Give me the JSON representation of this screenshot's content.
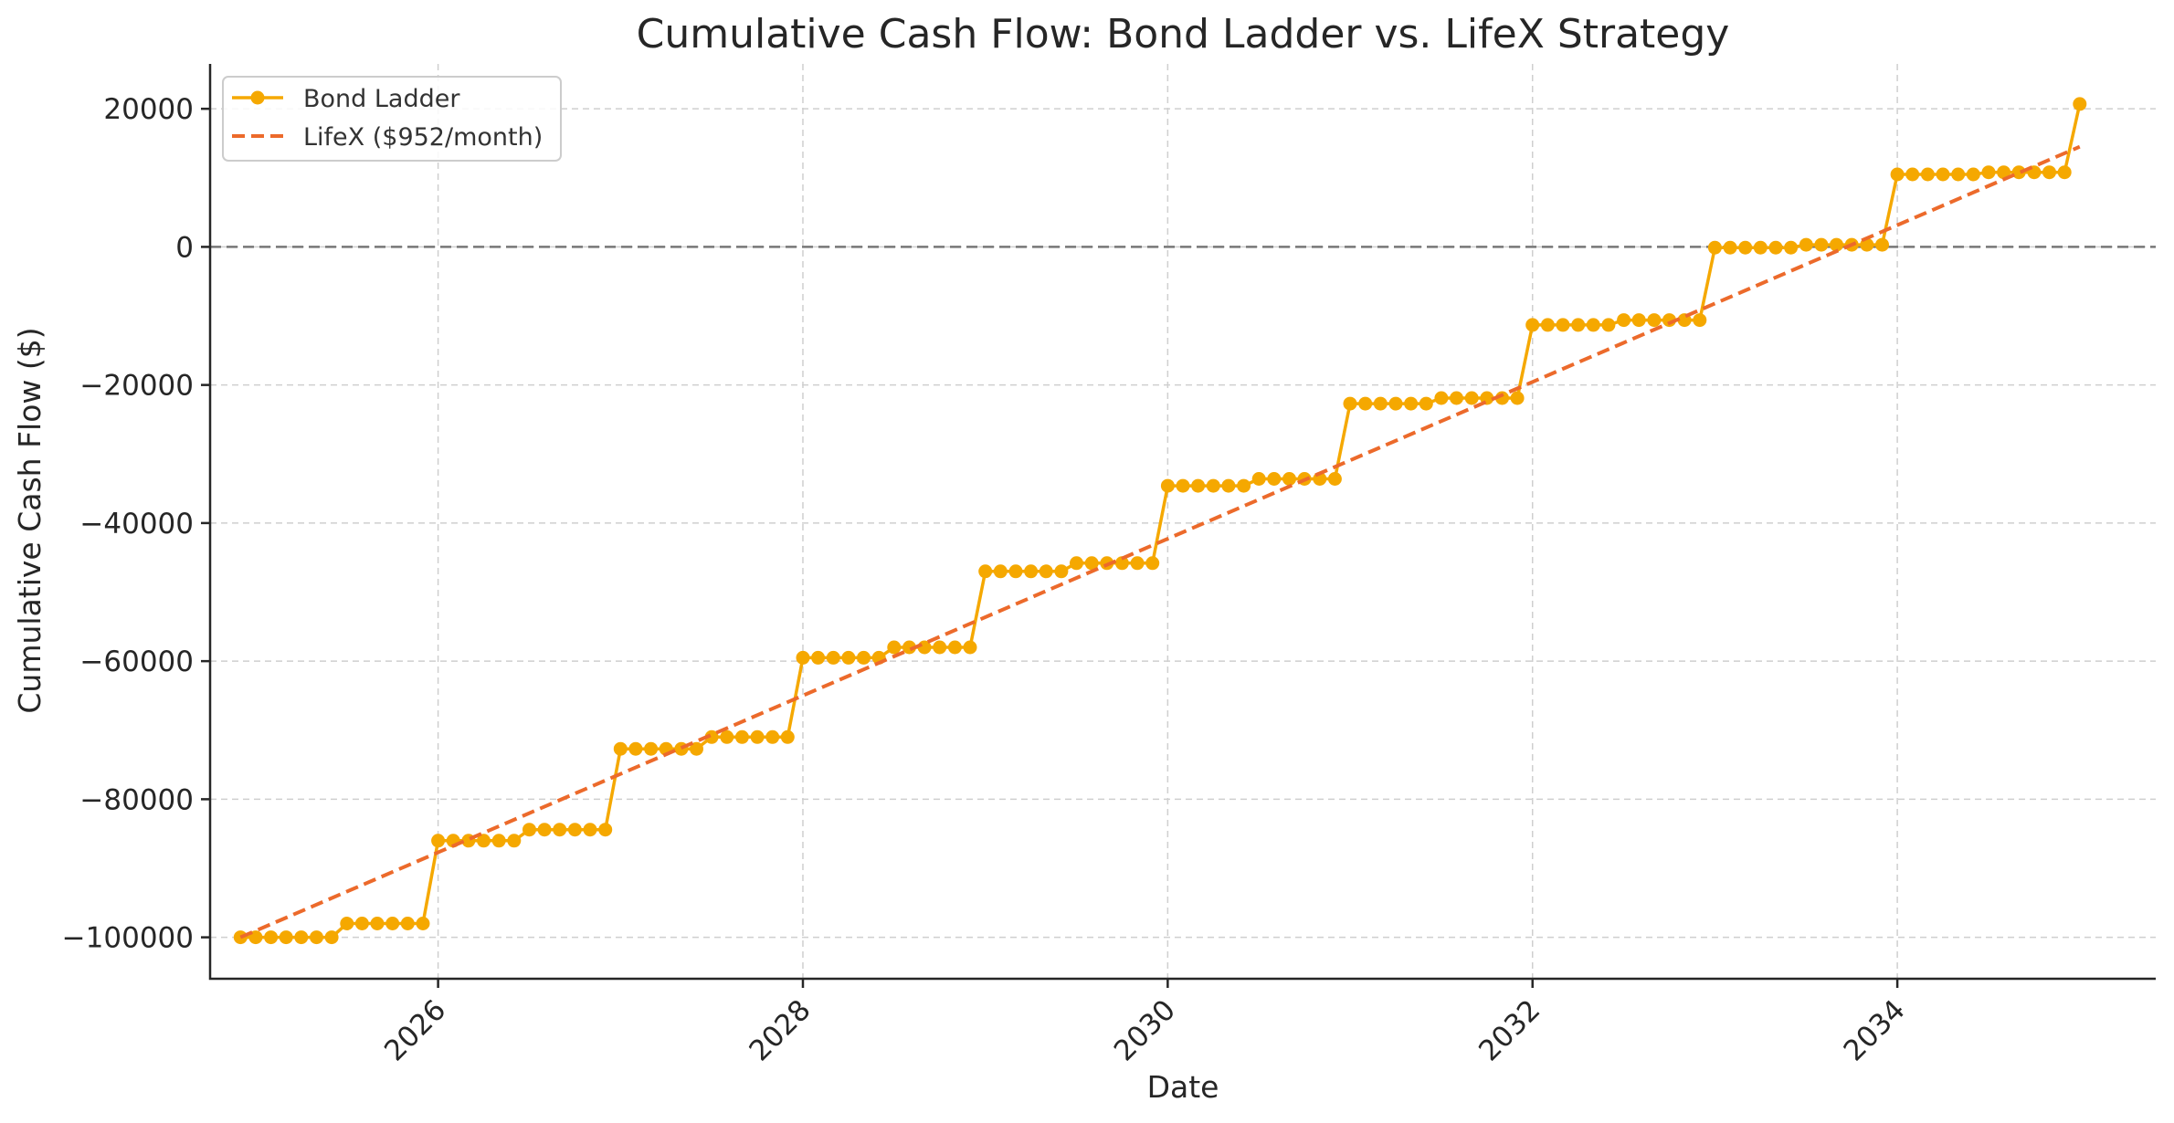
{
  "chart_data": {
    "type": "line",
    "title": "Cumulative Cash Flow: Bond Ladder vs. LifeX Strategy",
    "xlabel": "Date",
    "ylabel": "Cumulative Cash Flow ($)",
    "x_ticks": [
      "2026",
      "2028",
      "2030",
      "2032",
      "2034"
    ],
    "y_ticks": [
      20000,
      0,
      -20000,
      -40000,
      -60000,
      -80000,
      -100000
    ],
    "y_tick_labels": [
      "20000",
      "0",
      "−20000",
      "−40000",
      "−60000",
      "−80000",
      "−100000"
    ],
    "xlim": [
      "2024-10-01",
      "2035-06-01"
    ],
    "ylim": [
      -106000,
      26500
    ],
    "grid": true,
    "reference_line_y": 0,
    "legend_position": "upper-left",
    "colors": {
      "bond": "#f5a800",
      "lifex": "#ec6a2b",
      "zero_line": "#777777"
    },
    "series": [
      {
        "name": "Bond Ladder",
        "style": "solid-markers",
        "start": "2024-12",
        "steps": [
          {
            "year": 2025,
            "first_half": -100000,
            "second_half": -98000
          },
          {
            "year": 2026,
            "first_half": -86000,
            "second_half": -84400
          },
          {
            "year": 2027,
            "first_half": -72700,
            "second_half": -71000
          },
          {
            "year": 2028,
            "first_half": -59500,
            "second_half": -58000
          },
          {
            "year": 2029,
            "first_half": -47000,
            "second_half": -45800
          },
          {
            "year": 2030,
            "first_half": -34600,
            "second_half": -33600
          },
          {
            "year": 2031,
            "first_half": -22700,
            "second_half": -21900
          },
          {
            "year": 2032,
            "first_half": -11300,
            "second_half": -10600
          },
          {
            "year": 2033,
            "first_half": -100,
            "second_half": 300
          },
          {
            "year": 2034,
            "first_half": 10500,
            "second_half": 10800
          }
        ],
        "last_month_of_step": {
          "2024-12": -100000
        },
        "end_point": {
          "date": "2035-01",
          "value": 20700
        }
      },
      {
        "name": "LifeX ($952/month)",
        "style": "dashed",
        "x": [
          "2024-12",
          "2035-01"
        ],
        "values": [
          -100000,
          14500
        ]
      }
    ]
  }
}
